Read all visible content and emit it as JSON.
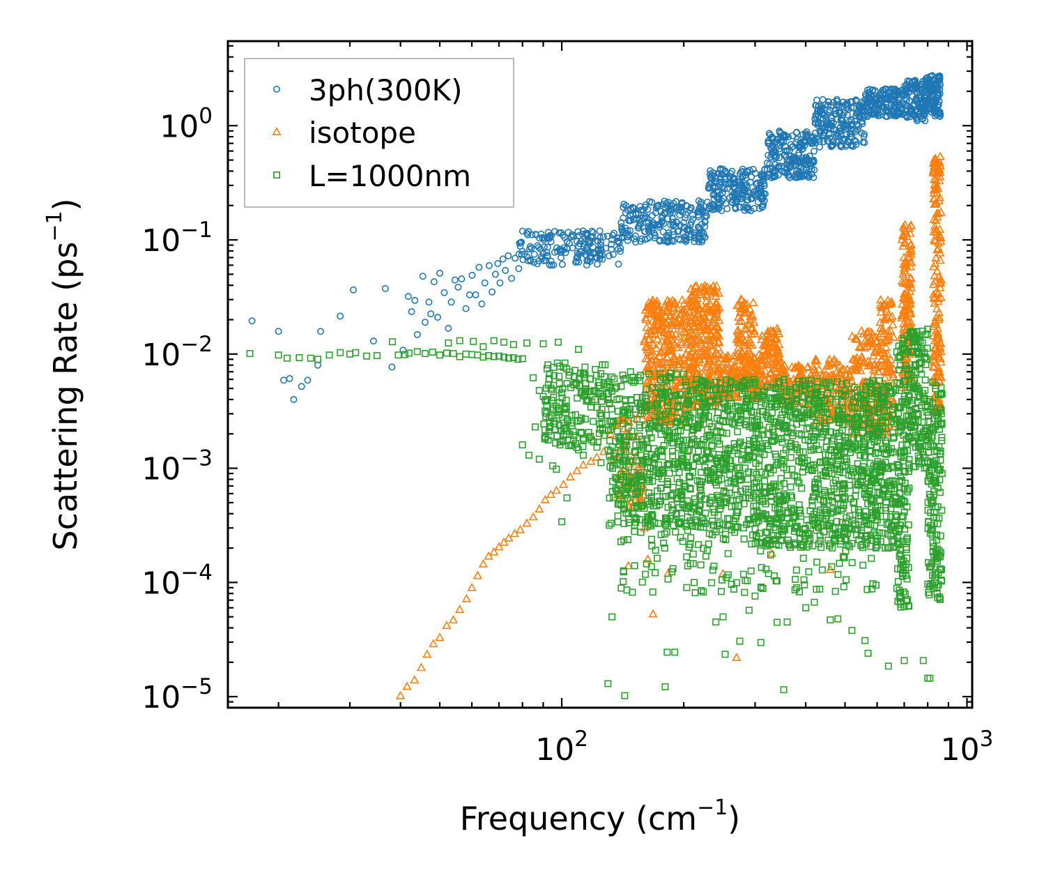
{
  "chart_data": {
    "type": "scatter",
    "title": "",
    "xlabel": "Frequency (cm⁻¹)",
    "xlabel_base": "Frequency (cm",
    "xlabel_sup": "−1",
    "xlabel_close": ")",
    "ylabel": "Scattering Rate (ps⁻¹)",
    "ylabel_base": "Scattering Rate (ps",
    "ylabel_sup": "−1",
    "ylabel_close": ")",
    "xscale": "log",
    "yscale": "log",
    "xlim": [
      15,
      1030
    ],
    "ylim": [
      8e-06,
      5.5
    ],
    "xticks": [
      {
        "value": 100,
        "base": "10",
        "exp": "2"
      },
      {
        "value": 1000,
        "base": "10",
        "exp": "3"
      }
    ],
    "yticks": [
      {
        "value": 1,
        "base": "10",
        "exp": "0"
      },
      {
        "value": 0.1,
        "base": "10",
        "exp": "−1"
      },
      {
        "value": 0.01,
        "base": "10",
        "exp": "−2"
      },
      {
        "value": 0.001,
        "base": "10",
        "exp": "−3"
      },
      {
        "value": 0.0001,
        "base": "10",
        "exp": "−4"
      },
      {
        "value": 1e-05,
        "base": "10",
        "exp": "−5"
      }
    ],
    "legend": {
      "position": "top-left",
      "entries": [
        "3ph(300K)",
        "isotope",
        "L=1000nm"
      ]
    },
    "series": [
      {
        "name": "3ph(300K)",
        "marker": "circle",
        "color": "#1f77b4",
        "points": [
          [
            17.2,
            0.0195
          ],
          [
            20.0,
            0.0158
          ],
          [
            20.6,
            0.0059
          ],
          [
            21.3,
            0.0061
          ],
          [
            21.8,
            0.004
          ],
          [
            22.8,
            0.0052
          ],
          [
            23.6,
            0.0059
          ],
          [
            25.0,
            0.008
          ],
          [
            25.4,
            0.0158
          ],
          [
            28.4,
            0.0215
          ],
          [
            30.6,
            0.0365
          ],
          [
            34.3,
            0.013
          ],
          [
            36.7,
            0.0375
          ],
          [
            38.1,
            0.0077
          ],
          [
            40.6,
            0.0108
          ],
          [
            41.8,
            0.032
          ],
          [
            42.6,
            0.0235
          ],
          [
            43.4,
            0.0295
          ],
          [
            44.0,
            0.0148
          ],
          [
            45.4,
            0.048
          ],
          [
            46.0,
            0.019
          ],
          [
            47.0,
            0.0285
          ],
          [
            47.5,
            0.0225
          ],
          [
            48.4,
            0.043
          ],
          [
            49.4,
            0.021
          ],
          [
            50.0,
            0.051
          ],
          [
            51.3,
            0.0345
          ],
          [
            52.5,
            0.0168
          ],
          [
            53.4,
            0.0285
          ],
          [
            54.5,
            0.0445
          ],
          [
            55.5,
            0.0385
          ],
          [
            56.6,
            0.0455
          ],
          [
            58.0,
            0.025
          ],
          [
            59.2,
            0.033
          ],
          [
            60.1,
            0.049
          ],
          [
            61.3,
            0.033
          ],
          [
            62.5,
            0.0575
          ],
          [
            63.5,
            0.0275
          ],
          [
            64.6,
            0.042
          ],
          [
            66.2,
            0.0595
          ],
          [
            67.3,
            0.035
          ],
          [
            68.6,
            0.05
          ],
          [
            69.5,
            0.062
          ],
          [
            70.4,
            0.042
          ],
          [
            71.6,
            0.068
          ],
          [
            72.6,
            0.054
          ],
          [
            73.8,
            0.0725
          ],
          [
            75.2,
            0.046
          ],
          [
            76.7,
            0.069
          ],
          [
            78.3,
            0.056
          ],
          [
            79.6,
            0.0745
          ]
        ],
        "bands": [
          {
            "x": [
              78,
              140
            ],
            "y": [
              0.06,
              0.12
            ],
            "count": 170
          },
          {
            "x": [
              140,
              230
            ],
            "y": [
              0.095,
              0.22
            ],
            "count": 220
          },
          {
            "x": [
              230,
              320
            ],
            "y": [
              0.18,
              0.43
            ],
            "count": 200
          },
          {
            "x": [
              320,
              420
            ],
            "y": [
              0.35,
              0.9
            ],
            "count": 200
          },
          {
            "x": [
              420,
              560
            ],
            "y": [
              0.65,
              1.7
            ],
            "count": 200
          },
          {
            "x": [
              560,
              700
            ],
            "y": [
              1.2,
              2.1
            ],
            "count": 160
          },
          {
            "x": [
              700,
              790
            ],
            "y": [
              1.1,
              2.5
            ],
            "count": 110
          },
          {
            "x": [
              790,
              860
            ],
            "y": [
              1.2,
              2.8
            ],
            "count": 110
          }
        ]
      },
      {
        "name": "isotope",
        "marker": "triangle",
        "color": "#ff7f0e",
        "points": [
          [
            40.0,
            1.02e-05
          ],
          [
            41.5,
            1.23e-05
          ],
          [
            43.3,
            1.4e-05
          ],
          [
            45.0,
            1.8e-05
          ],
          [
            46.5,
            2.35e-05
          ],
          [
            48.2,
            2.9e-05
          ],
          [
            50.0,
            3.3e-05
          ],
          [
            52.0,
            4.2e-05
          ],
          [
            54.0,
            4.7e-05
          ],
          [
            56.0,
            5.8e-05
          ],
          [
            58.2,
            7.2e-05
          ],
          [
            60.0,
            9e-05
          ],
          [
            62.0,
            0.000115
          ],
          [
            64.0,
            0.000145
          ],
          [
            66.0,
            0.00017
          ],
          [
            68.0,
            0.000185
          ],
          [
            70.0,
            0.000205
          ],
          [
            72.0,
            0.000225
          ],
          [
            74.0,
            0.000245
          ],
          [
            76.5,
            0.000268
          ],
          [
            79.0,
            0.00029
          ],
          [
            82.0,
            0.00033
          ],
          [
            85.0,
            0.000375
          ],
          [
            88.0,
            0.00044
          ],
          [
            91.0,
            0.00053
          ],
          [
            94.0,
            0.00059
          ],
          [
            97.0,
            0.00064
          ],
          [
            101,
            0.00072
          ],
          [
            105,
            0.00084
          ],
          [
            109,
            0.00095
          ],
          [
            113,
            0.00107
          ],
          [
            118,
            0.00115
          ],
          [
            122,
            0.00125
          ],
          [
            127,
            0.0014
          ],
          [
            132,
            0.002
          ],
          [
            135,
            0.00118
          ],
          [
            139,
            0.00088
          ],
          [
            145,
            0.00074
          ],
          [
            150,
            0.00065
          ],
          [
            158,
            0.00051
          ],
          [
            160,
            0.0003
          ],
          [
            163,
            0.00016
          ],
          [
            168,
            5.3e-05
          ],
          [
            146,
            0.00014
          ],
          [
            270,
            2.2e-05
          ],
          [
            183,
            0.00012
          ],
          [
            250,
            0.00012
          ],
          [
            330,
            0.00018
          ],
          [
            460,
            0.00013
          ]
        ],
        "bands": [
          {
            "x": [
              160,
              205
            ],
            "y": [
              0.0025,
              0.03
            ],
            "count": 340
          },
          {
            "x": [
              205,
              245
            ],
            "y": [
              0.0035,
              0.04
            ],
            "count": 300
          },
          {
            "x": [
              245,
              310
            ],
            "y": [
              0.004,
              0.01
            ],
            "count": 140
          },
          {
            "x": [
              270,
              300
            ],
            "y": [
              0.006,
              0.031
            ],
            "count": 90
          },
          {
            "x": [
              310,
              345
            ],
            "y": [
              0.005,
              0.017
            ],
            "count": 100
          },
          {
            "x": [
              345,
              420
            ],
            "y": [
              0.0035,
              0.008
            ],
            "count": 100
          },
          {
            "x": [
              420,
              520
            ],
            "y": [
              0.0025,
              0.009
            ],
            "count": 130
          },
          {
            "x": [
              520,
              610
            ],
            "y": [
              0.002,
              0.016
            ],
            "count": 150
          },
          {
            "x": [
              610,
              660
            ],
            "y": [
              0.002,
              0.03
            ],
            "count": 110
          },
          {
            "x": [
              690,
              730
            ],
            "y": [
              0.005,
              0.14
            ],
            "count": 130
          },
          {
            "x": [
              825,
              865
            ],
            "y": [
              0.003,
              0.55
            ],
            "count": 160
          },
          {
            "x": [
              135,
              160
            ],
            "y": [
              0.00045,
              0.003
            ],
            "count": 60
          }
        ]
      },
      {
        "name": "L=1000nm",
        "marker": "square",
        "color": "#2ca02c",
        "points": [
          [
            17.0,
            0.0101
          ],
          [
            20.0,
            0.0098
          ],
          [
            21.0,
            0.0092
          ],
          [
            22.5,
            0.0093
          ],
          [
            24.0,
            0.0092
          ],
          [
            25.0,
            0.009
          ],
          [
            26.7,
            0.0098
          ],
          [
            28.4,
            0.0103
          ],
          [
            30.0,
            0.01
          ],
          [
            31.0,
            0.0103
          ],
          [
            33.0,
            0.0096
          ],
          [
            35.0,
            0.0097
          ],
          [
            38.2,
            0.0128
          ],
          [
            39.5,
            0.0098
          ],
          [
            41.0,
            0.0099
          ],
          [
            42.0,
            0.0102
          ],
          [
            44.0,
            0.0105
          ],
          [
            46.0,
            0.0101
          ],
          [
            48.0,
            0.0104
          ],
          [
            50.0,
            0.0098
          ],
          [
            52.0,
            0.0102
          ],
          [
            54.0,
            0.0101
          ],
          [
            56.0,
            0.0095
          ],
          [
            58.0,
            0.01
          ],
          [
            60.0,
            0.0099
          ],
          [
            62.0,
            0.0098
          ],
          [
            64.0,
            0.0094
          ],
          [
            66.0,
            0.0097
          ],
          [
            68.0,
            0.0095
          ],
          [
            70.0,
            0.0096
          ],
          [
            72.0,
            0.0094
          ],
          [
            74.0,
            0.0092
          ],
          [
            76.0,
            0.0093
          ],
          [
            78.0,
            0.009
          ],
          [
            80.0,
            0.0091
          ],
          [
            52.5,
            0.0125
          ],
          [
            56.0,
            0.0131
          ],
          [
            60.5,
            0.0129
          ],
          [
            64.0,
            0.0116
          ],
          [
            68.0,
            0.0131
          ],
          [
            72.0,
            0.0127
          ],
          [
            76.0,
            0.0121
          ],
          [
            82.0,
            0.0125
          ],
          [
            90.0,
            0.0123
          ],
          [
            98.0,
            0.0127
          ],
          [
            110,
            0.011
          ],
          [
            85.0,
            0.0062
          ],
          [
            88.0,
            0.0048
          ],
          [
            91.0,
            0.004
          ],
          [
            93.0,
            0.0021
          ],
          [
            95.0,
            0.00105
          ],
          [
            97.0,
            0.00098
          ],
          [
            86.0,
            0.0023
          ],
          [
            80.0,
            0.0016
          ],
          [
            83.0,
            0.0013
          ],
          [
            88.0,
            0.0012
          ],
          [
            100,
            0.00034
          ],
          [
            103,
            0.00055
          ],
          [
            106,
            0.0016
          ],
          [
            110,
            0.00145
          ],
          [
            113,
            0.0013
          ],
          [
            125,
            0.00112
          ],
          [
            133,
            5e-05
          ],
          [
            143,
            1.02e-05
          ],
          [
            130,
            1.3e-05
          ],
          [
            180,
            1.22e-05
          ],
          [
            353,
            1.15e-05
          ],
          [
            182,
            2.45e-05
          ],
          [
            190,
            2.45e-05
          ],
          [
            253,
            2.35e-05
          ],
          [
            275,
            3.06e-05
          ],
          [
            310,
            2.98e-05
          ],
          [
            340,
            4.48e-05
          ],
          [
            360,
            4.5e-05
          ],
          [
            400,
            6e-05
          ],
          [
            420,
            6.7e-05
          ],
          [
            460,
            4.7e-05
          ],
          [
            480,
            4.8e-05
          ],
          [
            520,
            3.8e-05
          ],
          [
            560,
            3.1e-05
          ],
          [
            570,
            2.4e-05
          ],
          [
            640,
            1.85e-05
          ],
          [
            700,
            2.07e-05
          ],
          [
            780,
            2.07e-05
          ],
          [
            800,
            1.45e-05
          ],
          [
            810,
            1.45e-05
          ],
          [
            290,
            5.7e-05
          ],
          [
            300,
            7.6e-05
          ],
          [
            310,
            9e-05
          ],
          [
            240,
            4.5e-05
          ],
          [
            250,
            5e-05
          ]
        ],
        "bands": [
          {
            "x": [
              90,
              130
            ],
            "y": [
              0.0015,
              0.0085
            ],
            "count": 180
          },
          {
            "x": [
              130,
              200
            ],
            "y": [
              0.0003,
              0.007
            ],
            "count": 420
          },
          {
            "x": [
              200,
              300
            ],
            "y": [
              0.0003,
              0.006
            ],
            "count": 420
          },
          {
            "x": [
              300,
              420
            ],
            "y": [
              0.0002,
              0.006
            ],
            "count": 380
          },
          {
            "x": [
              420,
              560
            ],
            "y": [
              0.0002,
              0.006
            ],
            "count": 340
          },
          {
            "x": [
              560,
              670
            ],
            "y": [
              0.0002,
              0.006
            ],
            "count": 260
          },
          {
            "x": [
              670,
              720
            ],
            "y": [
              6e-05,
              0.015
            ],
            "count": 160
          },
          {
            "x": [
              720,
              800
            ],
            "y": [
              0.001,
              0.017
            ],
            "count": 140
          },
          {
            "x": [
              800,
              870
            ],
            "y": [
              7e-05,
              0.006
            ],
            "count": 160
          },
          {
            "x": [
              140,
              600
            ],
            "y": [
              8e-05,
              0.00035
            ],
            "count": 160
          }
        ]
      }
    ]
  }
}
